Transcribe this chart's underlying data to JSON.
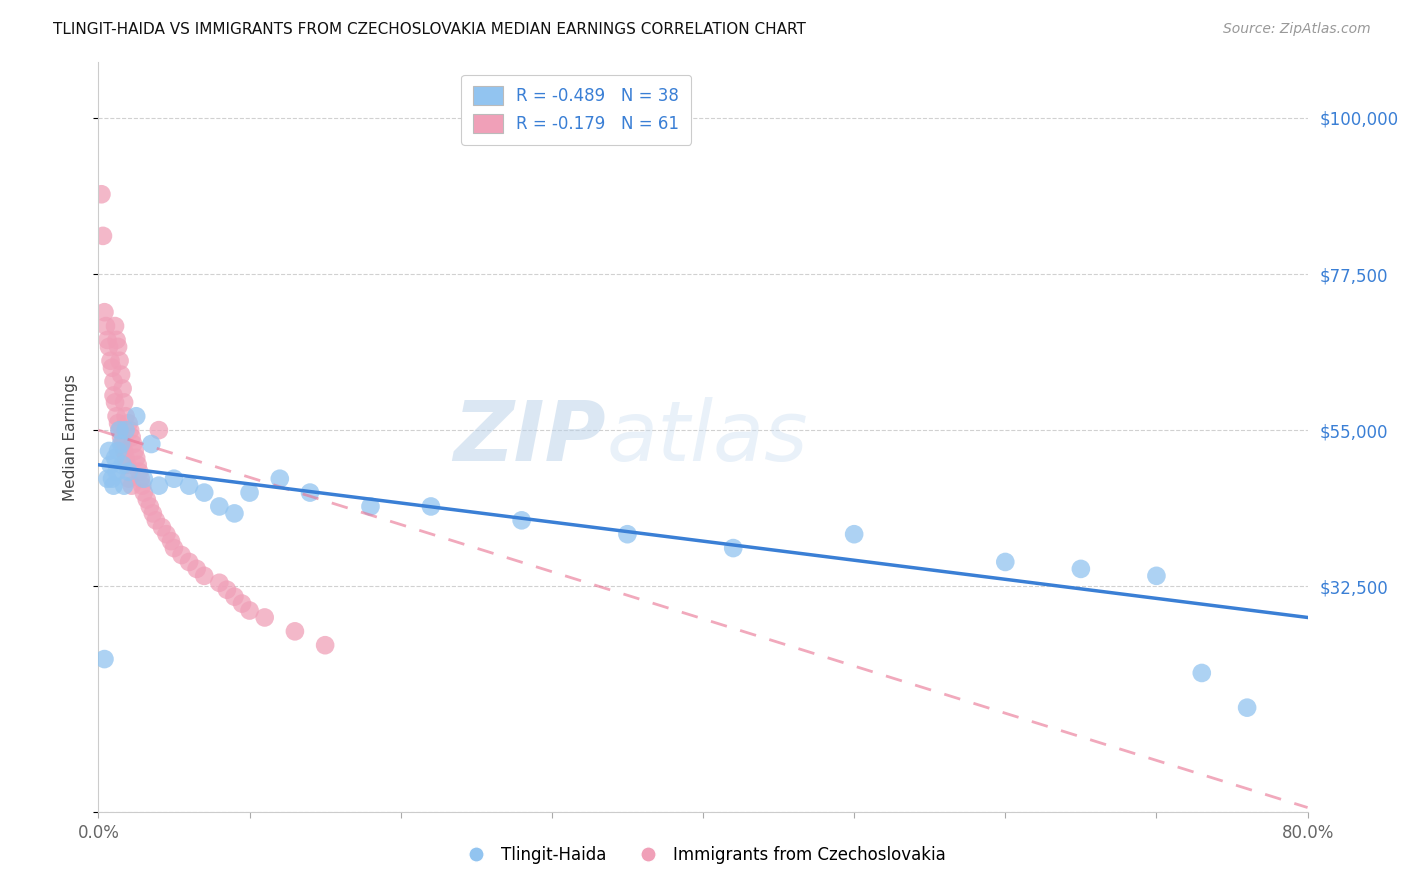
{
  "title": "TLINGIT-HAIDA VS IMMIGRANTS FROM CZECHOSLOVAKIA MEDIAN EARNINGS CORRELATION CHART",
  "source": "Source: ZipAtlas.com",
  "ylabel": "Median Earnings",
  "xlim": [
    0.0,
    0.8
  ],
  "ylim": [
    0,
    108000
  ],
  "yticks": [
    0,
    32500,
    55000,
    77500,
    100000
  ],
  "ytick_labels": [
    "",
    "$32,500",
    "$55,000",
    "$77,500",
    "$100,000"
  ],
  "xticks": [
    0.0,
    0.1,
    0.2,
    0.3,
    0.4,
    0.5,
    0.6,
    0.7,
    0.8
  ],
  "xtick_labels": [
    "0.0%",
    "",
    "",
    "",
    "",
    "",
    "",
    "",
    "80.0%"
  ],
  "legend1_label": "R = -0.489   N = 38",
  "legend2_label": "R = -0.179   N = 61",
  "blue_color": "#92C4F0",
  "pink_color": "#F0A0B8",
  "blue_line_color": "#3A7FD5",
  "pink_line_color": "#E87090",
  "watermark_color": "#C8DCF0",
  "grid_color": "#CCCCCC",
  "blue_x": [
    0.004,
    0.006,
    0.007,
    0.008,
    0.009,
    0.01,
    0.011,
    0.012,
    0.013,
    0.014,
    0.015,
    0.016,
    0.017,
    0.018,
    0.02,
    0.025,
    0.03,
    0.035,
    0.04,
    0.05,
    0.06,
    0.07,
    0.08,
    0.09,
    0.1,
    0.12,
    0.14,
    0.18,
    0.22,
    0.28,
    0.35,
    0.42,
    0.5,
    0.6,
    0.65,
    0.7,
    0.73,
    0.76
  ],
  "blue_y": [
    22000,
    48000,
    52000,
    50000,
    48000,
    47000,
    51000,
    49000,
    52000,
    55000,
    53000,
    50000,
    47000,
    55000,
    49000,
    57000,
    48000,
    53000,
    47000,
    48000,
    47000,
    46000,
    44000,
    43000,
    46000,
    48000,
    46000,
    44000,
    44000,
    42000,
    40000,
    38000,
    40000,
    36000,
    35000,
    34000,
    20000,
    15000
  ],
  "pink_x": [
    0.002,
    0.003,
    0.004,
    0.005,
    0.006,
    0.007,
    0.008,
    0.009,
    0.01,
    0.01,
    0.011,
    0.011,
    0.012,
    0.012,
    0.013,
    0.013,
    0.014,
    0.014,
    0.015,
    0.015,
    0.016,
    0.016,
    0.017,
    0.017,
    0.018,
    0.018,
    0.019,
    0.02,
    0.02,
    0.021,
    0.022,
    0.022,
    0.023,
    0.024,
    0.025,
    0.026,
    0.027,
    0.028,
    0.029,
    0.03,
    0.032,
    0.034,
    0.036,
    0.038,
    0.04,
    0.042,
    0.045,
    0.048,
    0.05,
    0.055,
    0.06,
    0.065,
    0.07,
    0.08,
    0.085,
    0.09,
    0.095,
    0.1,
    0.11,
    0.13,
    0.15
  ],
  "pink_y": [
    89000,
    83000,
    72000,
    70000,
    68000,
    67000,
    65000,
    64000,
    62000,
    60000,
    59000,
    70000,
    68000,
    57000,
    56000,
    67000,
    55000,
    65000,
    54000,
    63000,
    53000,
    61000,
    52000,
    59000,
    51000,
    57000,
    50000,
    56000,
    48000,
    55000,
    54000,
    47000,
    53000,
    52000,
    51000,
    50000,
    49000,
    48000,
    47000,
    46000,
    45000,
    44000,
    43000,
    42000,
    55000,
    41000,
    40000,
    39000,
    38000,
    37000,
    36000,
    35000,
    34000,
    33000,
    32000,
    31000,
    30000,
    29000,
    28000,
    26000,
    24000
  ]
}
